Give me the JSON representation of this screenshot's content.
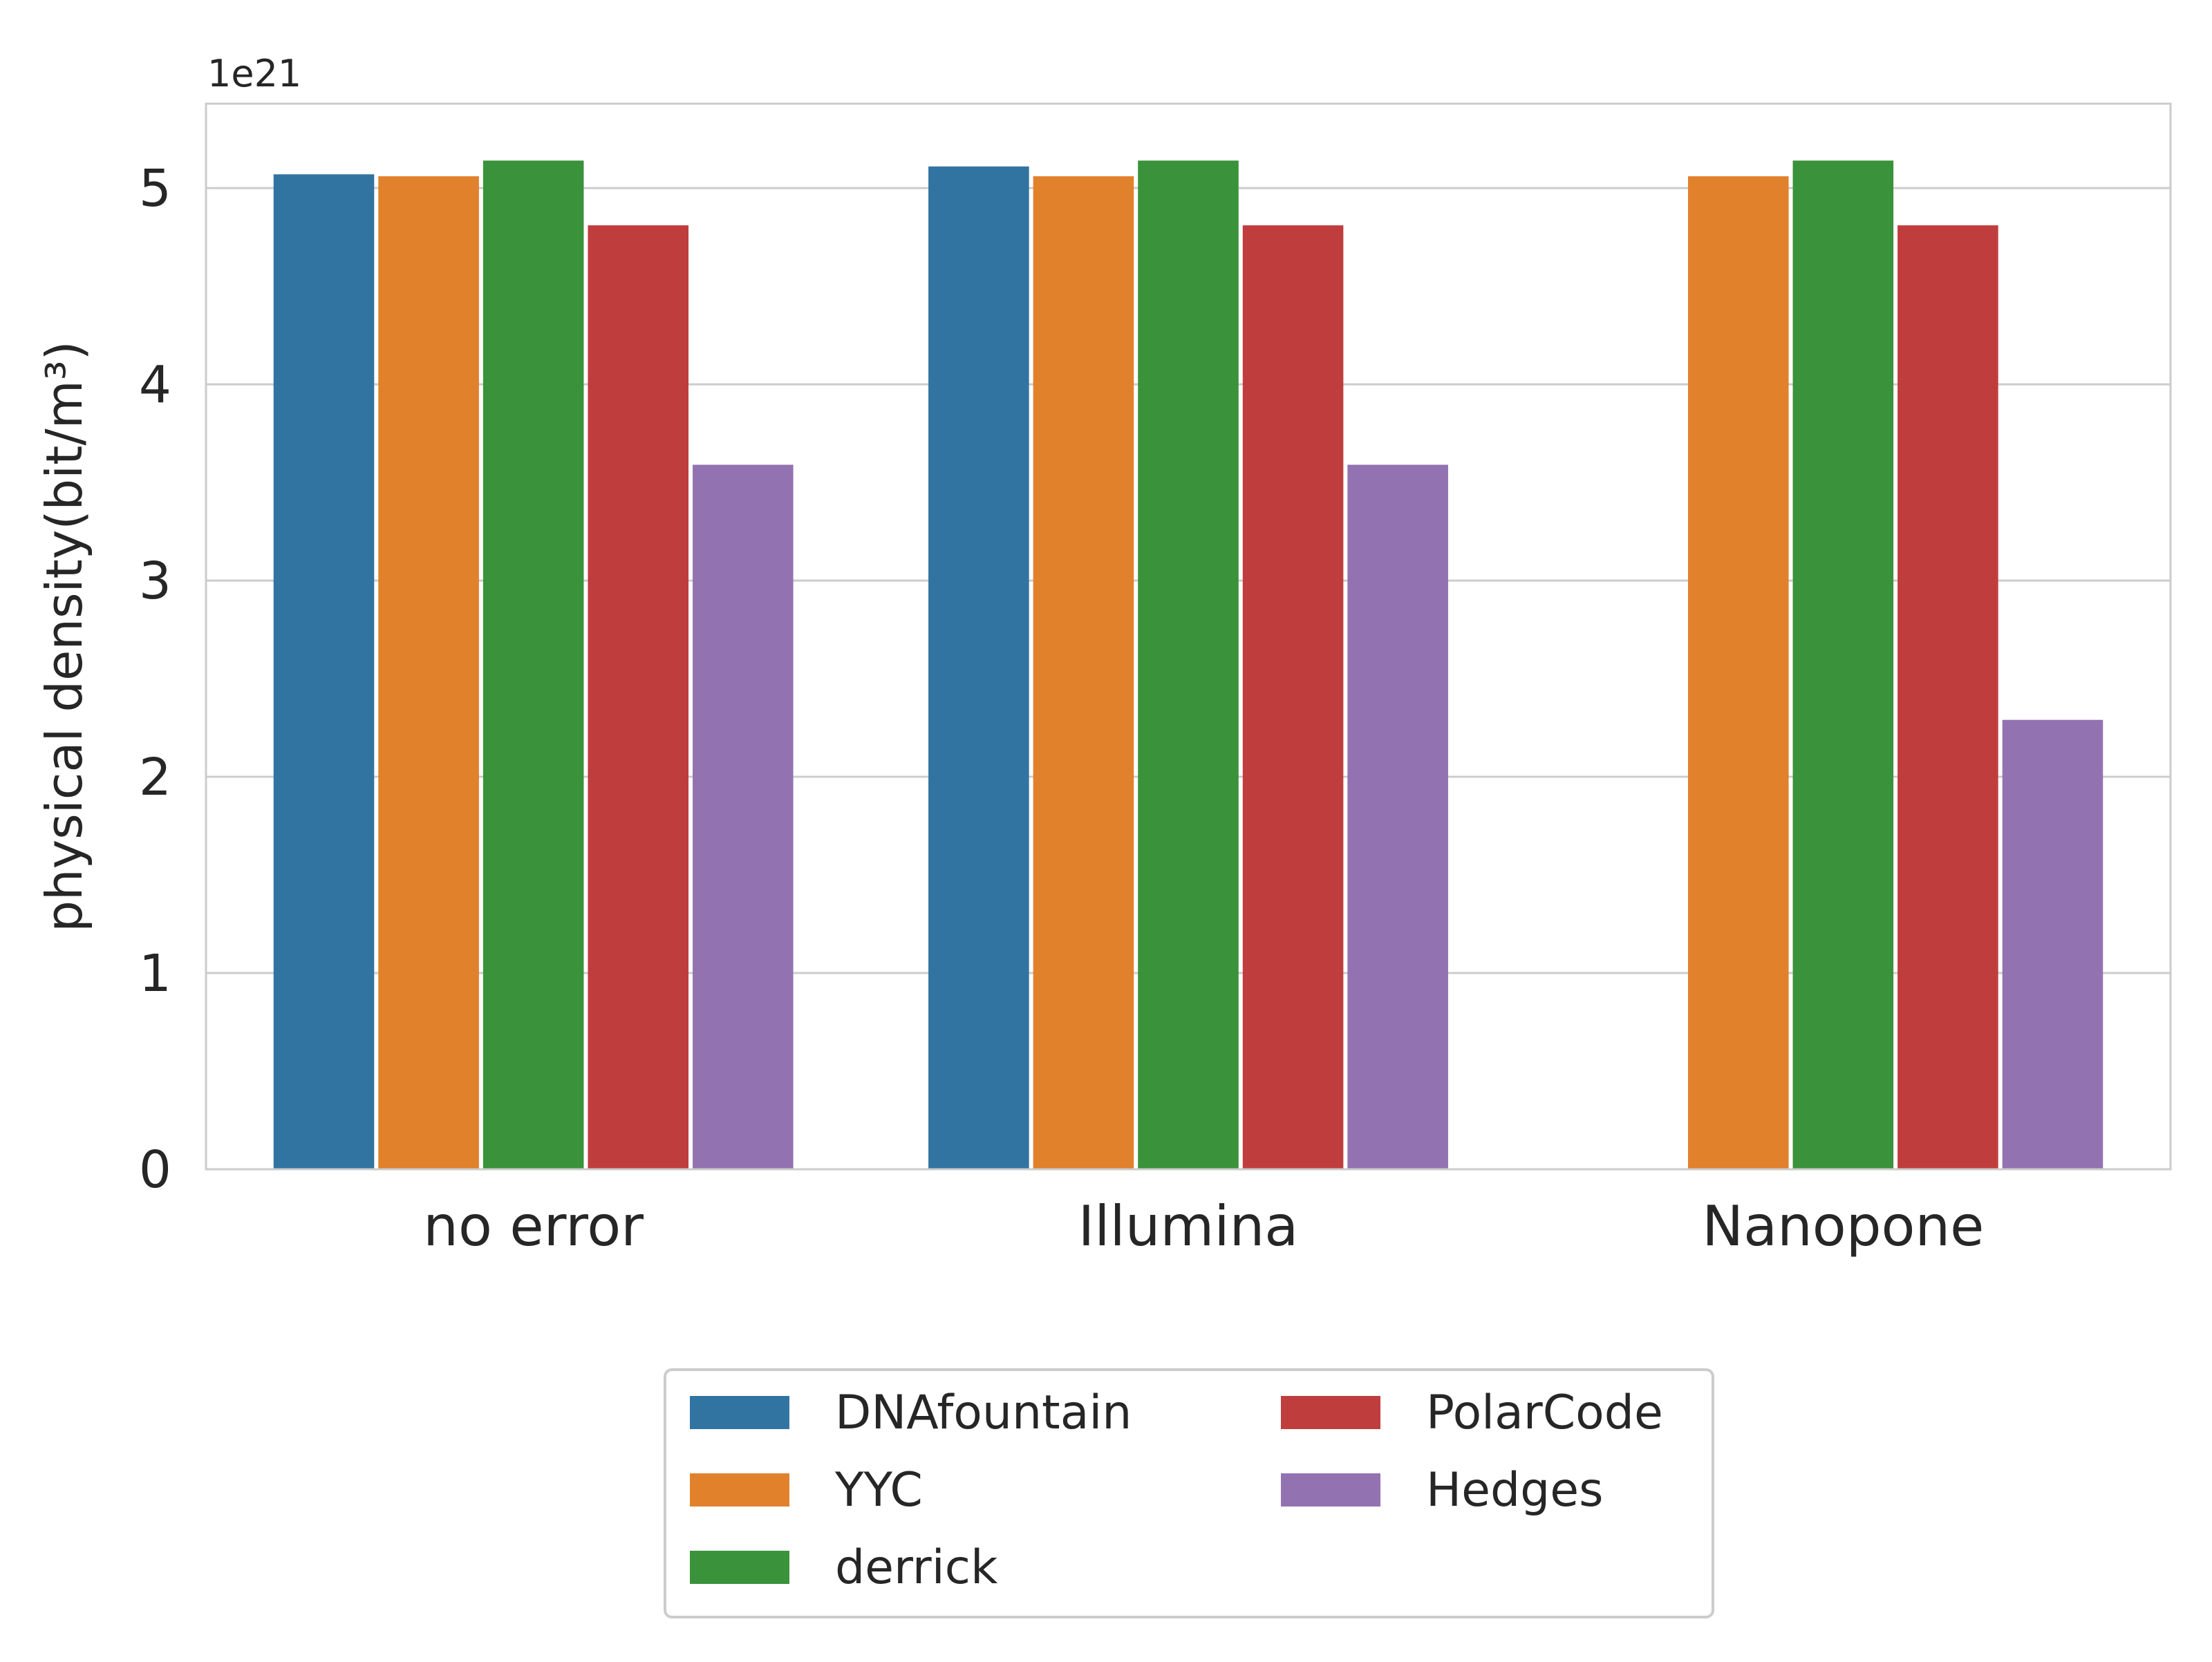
{
  "chart_data": {
    "type": "bar",
    "title": "",
    "xlabel": "",
    "ylabel": "physical density(bit/m³)",
    "y_offset_label": "1e21",
    "y_scale_factor": 1e+21,
    "ylim": [
      0,
      5.43
    ],
    "yticks": [
      0,
      1,
      2,
      3,
      4,
      5
    ],
    "grid": "horizontal",
    "legend_position": "bottom-center, below axes, 2 columns",
    "categories": [
      "no error",
      "Illumina",
      "Nanopone"
    ],
    "series": [
      {
        "name": "DNAfountain",
        "color": "#3274a1",
        "values": [
          5.07,
          5.11,
          null
        ]
      },
      {
        "name": "YYC",
        "color": "#e1812c",
        "values": [
          5.06,
          5.06,
          5.06
        ]
      },
      {
        "name": "derrick",
        "color": "#3a923a",
        "values": [
          5.14,
          5.14,
          5.14
        ]
      },
      {
        "name": "PolarCode",
        "color": "#c03d3e",
        "values": [
          4.81,
          4.81,
          4.81
        ]
      },
      {
        "name": "Hedges",
        "color": "#9372b2",
        "values": [
          3.59,
          3.59,
          2.29
        ]
      }
    ]
  }
}
